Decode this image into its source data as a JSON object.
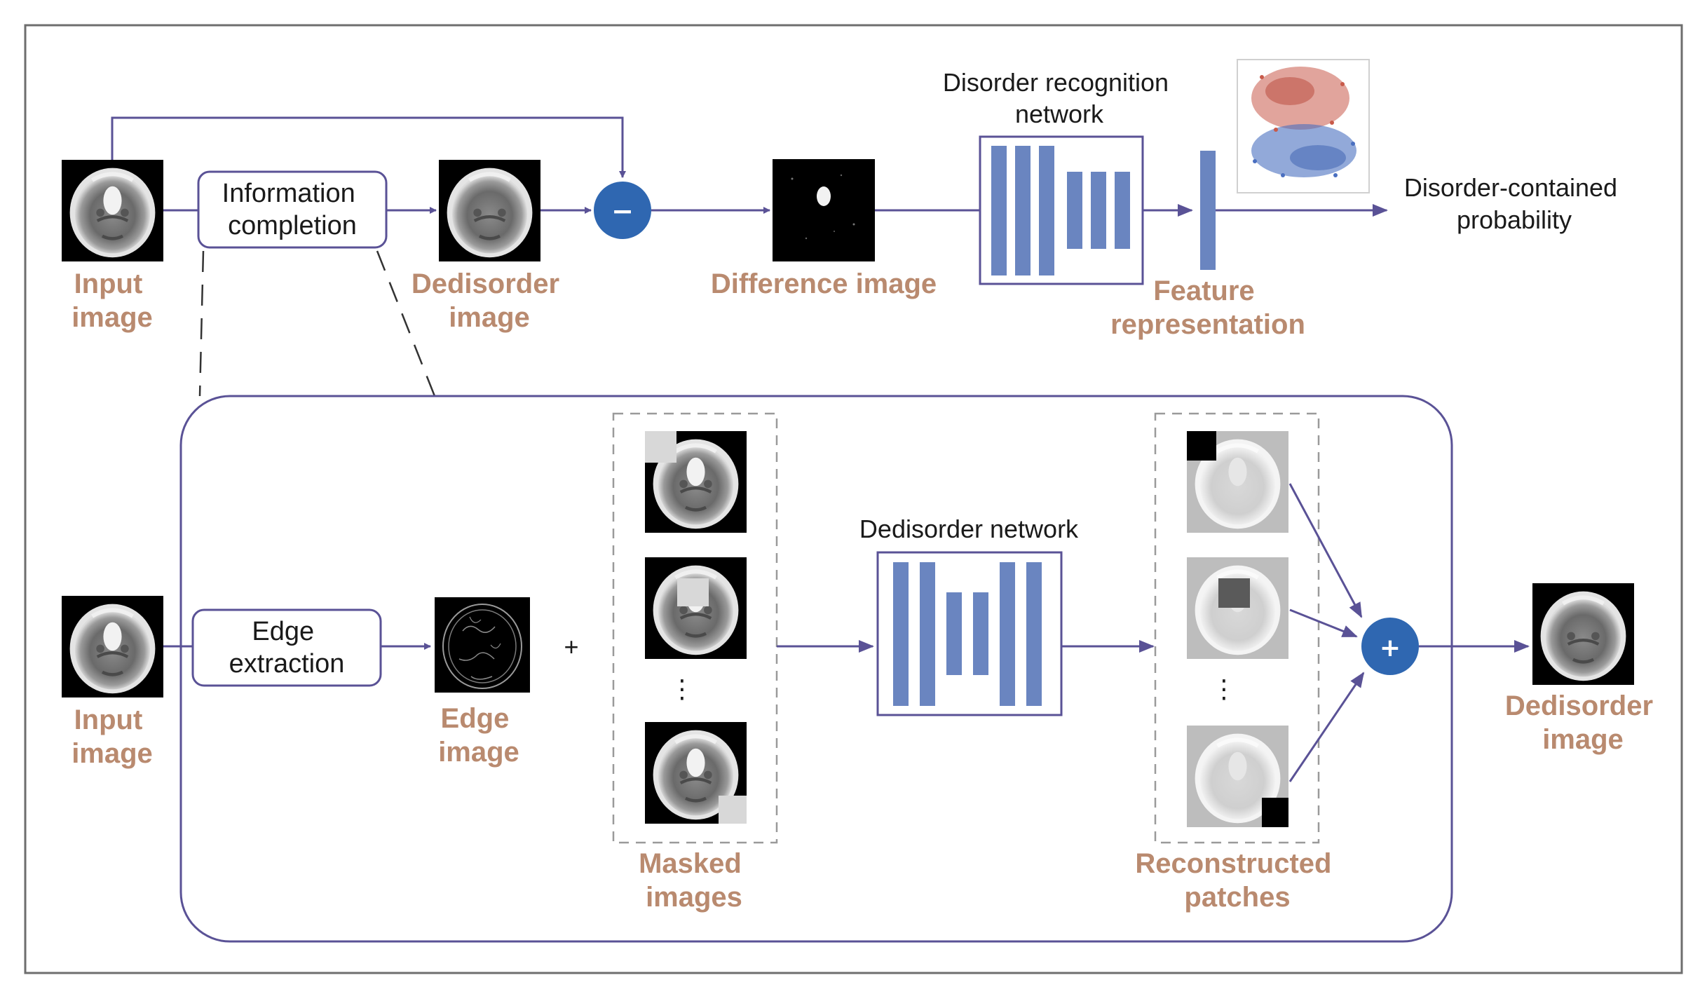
{
  "top_row": {
    "input_label": [
      "Input",
      "image"
    ],
    "info_completion": [
      "Information",
      "completion"
    ],
    "dedisorder_label": [
      "Dedisorder",
      "image"
    ],
    "minus_symbol": "−",
    "difference_label": "Difference image",
    "recognition_title": [
      "Disorder recognition",
      "network"
    ],
    "feature_label": [
      "Feature",
      "representation"
    ],
    "output_label": [
      "Disorder-contained",
      "probability"
    ]
  },
  "bottom_row": {
    "input_label": [
      "Input",
      "image"
    ],
    "edge_extraction": [
      "Edge",
      "extraction"
    ],
    "edge_label": [
      "Edge",
      "image"
    ],
    "plus_sign": "+",
    "masked_label": [
      "Masked",
      "images"
    ],
    "vertical_ellipsis": "⋮",
    "dedisorder_network_title": "Dedisorder network",
    "reconstructed_label": [
      "Reconstructed",
      "patches"
    ],
    "add_symbol": "+",
    "output_label": [
      "Dedisorder",
      "image"
    ]
  },
  "colors": {
    "flow_line": "#5a5296",
    "label_orange": "#b98a6f",
    "network_bar": "#6a85c0",
    "operator_fill": "#2f67b1",
    "frame": "#6e6e6e"
  },
  "icons": {
    "ct_scan": "brain-ct-icon",
    "scatter": "tsne-scatter-icon"
  }
}
